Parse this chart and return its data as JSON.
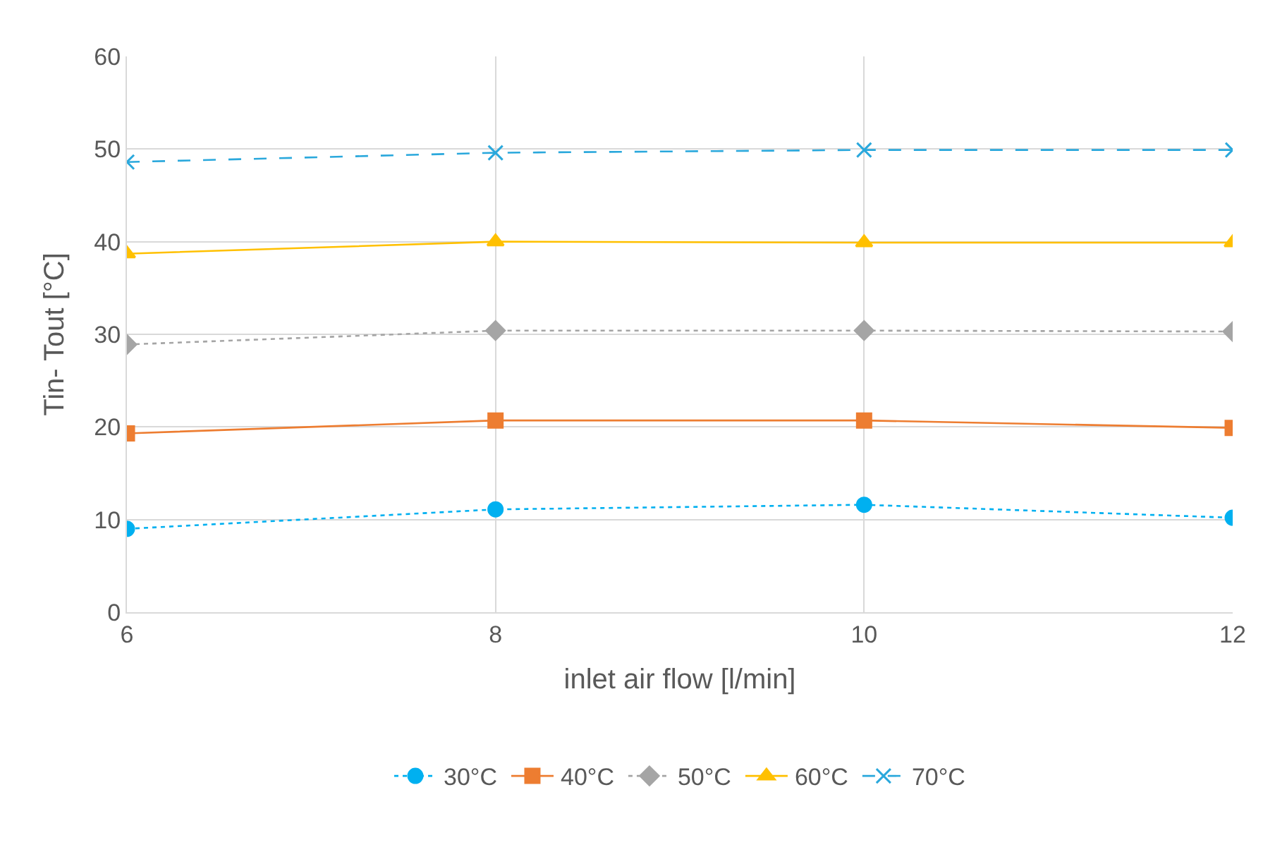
{
  "chart_data": {
    "type": "line",
    "xlabel": "inlet air flow [l/min]",
    "ylabel": "Tin- Tout [°C]",
    "x": [
      6,
      8,
      10,
      12
    ],
    "xlim": [
      6,
      12
    ],
    "xticks": [
      6,
      8,
      10,
      12
    ],
    "ylim": [
      0,
      60
    ],
    "yticks": [
      0,
      10,
      20,
      30,
      40,
      50,
      60
    ],
    "grid": true,
    "legend": "bottom",
    "series": [
      {
        "name": "30°C",
        "color": "#00b0f0",
        "values": [
          9.0,
          11.1,
          11.6,
          10.2
        ],
        "marker": "circle",
        "line_style": "dotted"
      },
      {
        "name": "40°C",
        "color": "#ed7d31",
        "values": [
          19.3,
          20.7,
          20.7,
          19.9
        ],
        "marker": "square",
        "line_style": "solid"
      },
      {
        "name": "50°C",
        "color": "#a5a5a5",
        "values": [
          28.9,
          30.4,
          30.4,
          30.3
        ],
        "marker": "diamond",
        "line_style": "dotted"
      },
      {
        "name": "60°C",
        "color": "#ffc000",
        "values": [
          38.7,
          40.0,
          39.9,
          39.9
        ],
        "marker": "triangle",
        "line_style": "solid"
      },
      {
        "name": "70°C",
        "color": "#2aa8dc",
        "values": [
          48.6,
          49.6,
          49.9,
          49.9
        ],
        "marker": "cross",
        "line_style": "dashed"
      }
    ]
  }
}
